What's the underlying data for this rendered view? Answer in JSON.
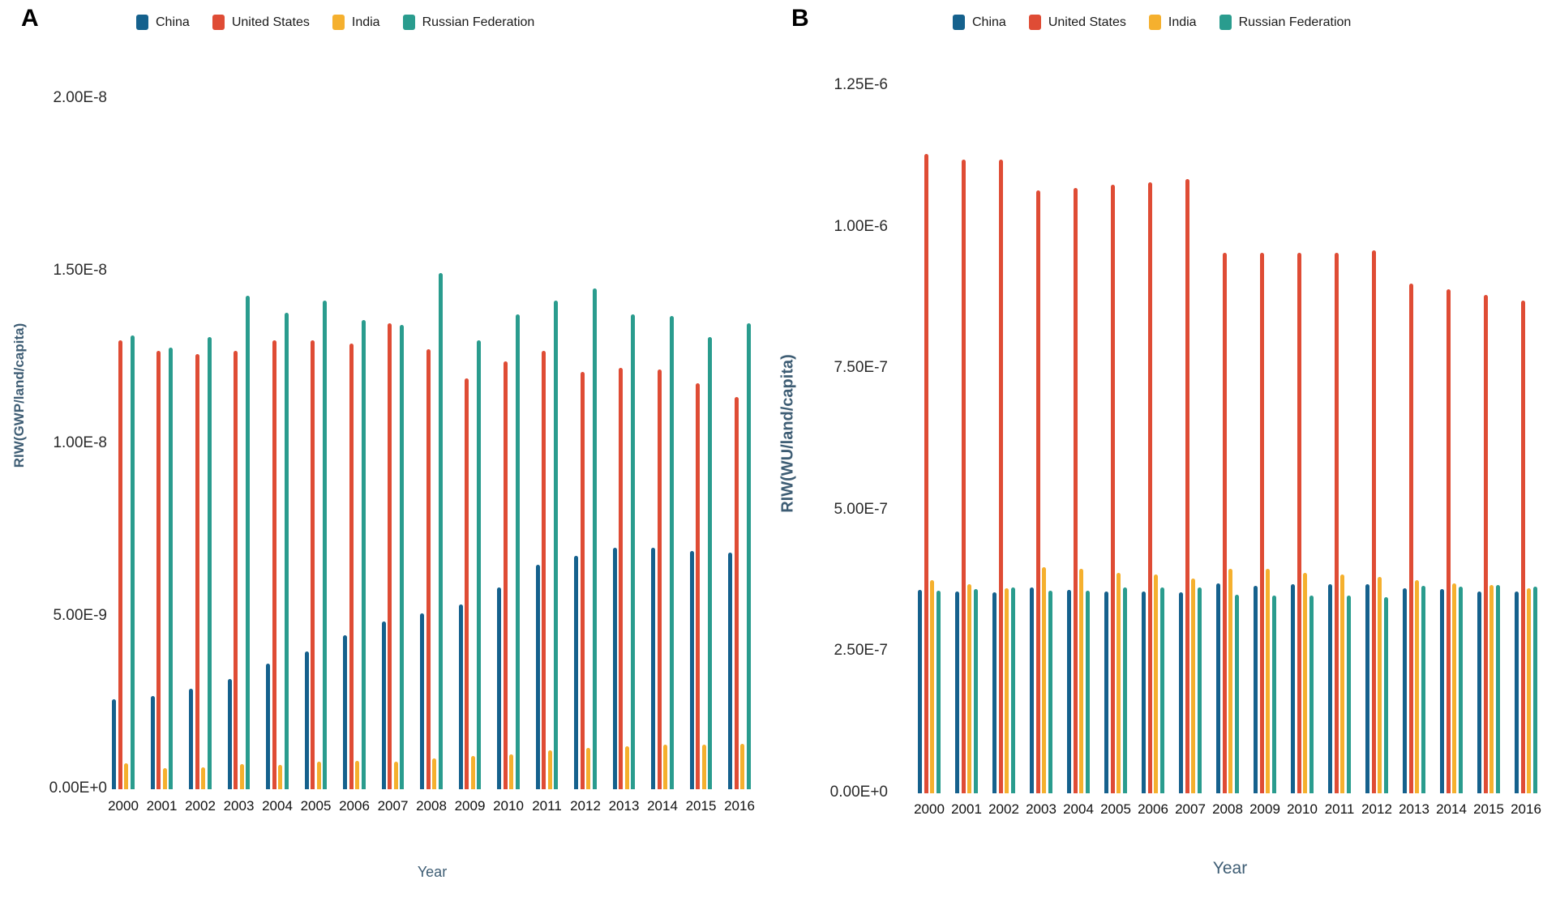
{
  "panels": [
    {
      "letter": "A"
    },
    {
      "letter": "B"
    }
  ],
  "legend": [
    "China",
    "United States",
    "India",
    "Russian Federation"
  ],
  "series_colors": [
    "#15618d",
    "#df4c35",
    "#f5b02e",
    "#2a9c8e"
  ],
  "chart_data": [
    {
      "type": "bar",
      "title": "A",
      "xlabel": "Year",
      "ylabel": "RIW(GWP/land/capita)",
      "ylim": [
        0,
        2e-08
      ],
      "grid": false,
      "legend_position": "top",
      "ytick_labels": [
        "0.00E+0",
        "5.00E-9",
        "1.00E-8",
        "1.50E-8",
        "2.00E-8"
      ],
      "categories": [
        2000,
        2001,
        2002,
        2003,
        2004,
        2005,
        2006,
        2007,
        2008,
        2009,
        2010,
        2011,
        2012,
        2013,
        2014,
        2015,
        2016
      ],
      "series": [
        {
          "name": "China",
          "values": [
            2.6e-09,
            2.7e-09,
            2.9e-09,
            3.2e-09,
            3.65e-09,
            4e-09,
            4.45e-09,
            4.85e-09,
            5.1e-09,
            5.35e-09,
            5.85e-09,
            6.5e-09,
            6.75e-09,
            7e-09,
            7e-09,
            6.9e-09,
            6.85e-09
          ]
        },
        {
          "name": "United States",
          "values": [
            1.3e-08,
            1.27e-08,
            1.26e-08,
            1.27e-08,
            1.3e-08,
            1.3e-08,
            1.29e-08,
            1.35e-08,
            1.275e-08,
            1.19e-08,
            1.24e-08,
            1.27e-08,
            1.21e-08,
            1.22e-08,
            1.215e-08,
            1.175e-08,
            1.135e-08
          ]
        },
        {
          "name": "India",
          "values": [
            7.5e-10,
            6.2e-10,
            6.4e-10,
            7.3e-10,
            7.1e-10,
            8e-10,
            8.2e-10,
            8e-10,
            8.9e-10,
            9.6e-10,
            1e-09,
            1.13e-09,
            1.2e-09,
            1.25e-09,
            1.3e-09,
            1.3e-09,
            1.32e-09
          ]
        },
        {
          "name": "Russian Federation",
          "values": [
            1.315e-08,
            1.28e-08,
            1.31e-08,
            1.43e-08,
            1.38e-08,
            1.415e-08,
            1.36e-08,
            1.345e-08,
            1.495e-08,
            1.3e-08,
            1.375e-08,
            1.415e-08,
            1.45e-08,
            1.375e-08,
            1.37e-08,
            1.31e-08,
            1.35e-08
          ]
        }
      ]
    },
    {
      "type": "bar",
      "title": "B",
      "xlabel": "Year",
      "ylabel": "RIW(WU/land/capita)",
      "ylim": [
        0,
        1.25e-06
      ],
      "grid": false,
      "legend_position": "top",
      "ytick_labels": [
        "0.00E+0",
        "2.50E-7",
        "5.00E-7",
        "7.50E-7",
        "1.00E-6",
        "1.25E-6"
      ],
      "categories": [
        2000,
        2001,
        2002,
        2003,
        2004,
        2005,
        2006,
        2007,
        2008,
        2009,
        2010,
        2011,
        2012,
        2013,
        2014,
        2015,
        2016
      ],
      "series": [
        {
          "name": "China",
          "values": [
            3.6e-07,
            3.57e-07,
            3.55e-07,
            3.64e-07,
            3.6e-07,
            3.57e-07,
            3.57e-07,
            3.55e-07,
            3.71e-07,
            3.67e-07,
            3.69e-07,
            3.7e-07,
            3.69e-07,
            3.62e-07,
            3.61e-07,
            3.57e-07,
            3.57e-07
          ]
        },
        {
          "name": "United States",
          "values": [
            1.13e-06,
            1.12e-06,
            1.12e-06,
            1.065e-06,
            1.07e-06,
            1.075e-06,
            1.08e-06,
            1.085e-06,
            9.55e-07,
            9.55e-07,
            9.55e-07,
            9.55e-07,
            9.6e-07,
            9e-07,
            8.9e-07,
            8.8e-07,
            8.7e-07
          ]
        },
        {
          "name": "India",
          "values": [
            3.76e-07,
            3.7e-07,
            3.62e-07,
            4e-07,
            3.96e-07,
            3.9e-07,
            3.86e-07,
            3.8e-07,
            3.97e-07,
            3.96e-07,
            3.89e-07,
            3.86e-07,
            3.83e-07,
            3.77e-07,
            3.71e-07,
            3.68e-07,
            3.62e-07
          ]
        },
        {
          "name": "Russian Federation",
          "values": [
            3.58e-07,
            3.61e-07,
            3.63e-07,
            3.58e-07,
            3.58e-07,
            3.64e-07,
            3.64e-07,
            3.63e-07,
            3.51e-07,
            3.5e-07,
            3.49e-07,
            3.49e-07,
            3.47e-07,
            3.67e-07,
            3.65e-07,
            3.68e-07,
            3.65e-07
          ]
        }
      ]
    }
  ]
}
